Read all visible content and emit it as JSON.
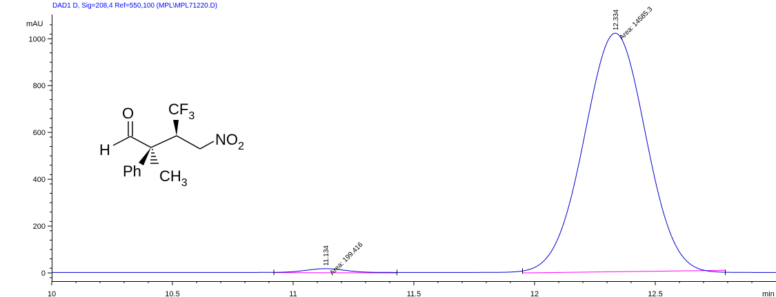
{
  "header": {
    "text": "DAD1 D, Sig=208,4 Ref=550,100 (MPL\\MPL71220.D)",
    "color": "#0000ff"
  },
  "colors": {
    "signal": "#0000cc",
    "baseline": "#ff00ff",
    "axis": "#000000"
  },
  "chart_data": {
    "type": "line",
    "title": "",
    "xlabel": "min",
    "ylabel": "mAU",
    "xlim": [
      10,
      13
    ],
    "ylim": [
      -20,
      1100
    ],
    "x_ticks": [
      10,
      10.5,
      11,
      11.5,
      12,
      12.5
    ],
    "x_tick_labels": [
      "10",
      "10.5",
      "11",
      "11.5",
      "12",
      "12.5"
    ],
    "y_ticks": [
      0,
      200,
      400,
      600,
      800,
      1000
    ],
    "y_tick_labels": [
      "0",
      "200",
      "400",
      "600",
      "800",
      "1000"
    ],
    "grid": false,
    "baseline_offset": 2,
    "peaks": [
      {
        "rt": 11.134,
        "rt_label": "11.134",
        "height": 16,
        "sigma": 0.075,
        "area_label": "Area: 199.416"
      },
      {
        "rt": 12.334,
        "rt_label": "12.334",
        "height": 1022,
        "sigma": 0.12,
        "area_label": "Area: 14585.3"
      }
    ],
    "integration_baselines": [
      {
        "x_start": 10.92,
        "y_start": 1,
        "x_end": 11.43,
        "y_end": 0
      },
      {
        "x_start": 11.95,
        "y_start": 0,
        "x_end": 12.79,
        "y_end": 11
      }
    ],
    "integration_markers": [
      10.92,
      11.43,
      11.95,
      12.79
    ]
  },
  "structure": {
    "labels": {
      "oxygen": "O",
      "hydrogen": "H",
      "cf": "CF",
      "cf_sub": "3",
      "no": "NO",
      "no_sub": "2",
      "phenyl": "Ph",
      "ch": "CH",
      "ch_sub": "3"
    }
  }
}
